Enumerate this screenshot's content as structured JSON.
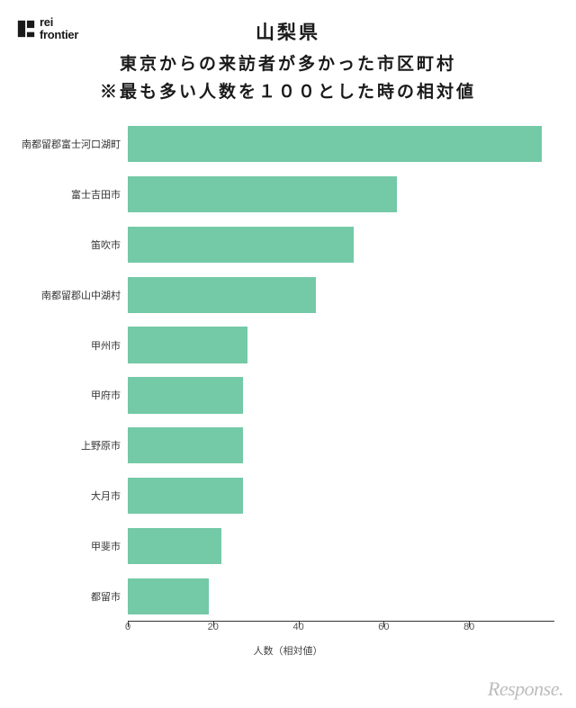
{
  "logo": {
    "line1": "rei",
    "line2": "frontier",
    "mark_color": "#1a1a1a"
  },
  "title": {
    "line1": "山梨県",
    "line2": "東京からの来訪者が多かった市区町村",
    "line3": "※最も多い人数を１００とした時の相対値",
    "color": "#1a1a1a",
    "fontsize_line1": 21,
    "fontsize_rest": 19
  },
  "chart": {
    "type": "bar-horizontal",
    "categories": [
      "南都留郡富士河口湖町",
      "富士吉田市",
      "笛吹市",
      "南都留郡山中湖村",
      "甲州市",
      "甲府市",
      "上野原市",
      "大月市",
      "甲斐市",
      "都留市"
    ],
    "values": [
      97,
      63,
      53,
      44,
      28,
      27,
      27,
      27,
      22,
      19
    ],
    "bar_color": "#74c9a7",
    "xmax": 100,
    "xticks": [
      0,
      20,
      40,
      60,
      80
    ],
    "xlabel": "人数（相対値）",
    "label_fontsize": 11,
    "tick_fontsize": 11,
    "axis_color": "#333333",
    "background_color": "#ffffff",
    "bar_gap_ratio": 0.28
  },
  "watermark": {
    "text": "Response.",
    "color": "#bdbdbd",
    "fontsize": 22
  }
}
